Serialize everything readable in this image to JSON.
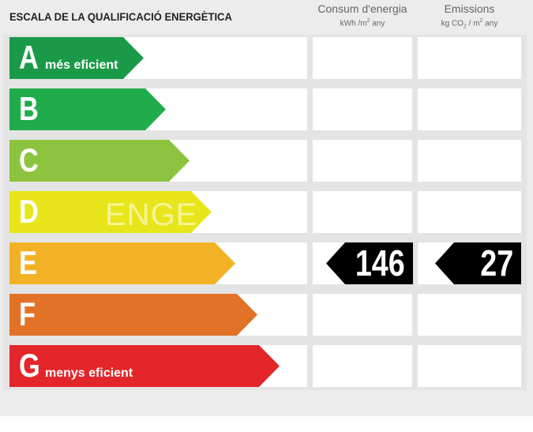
{
  "title": "ESCALA DE LA QUALIFICACIÓ ENERGÈTICA",
  "columns": {
    "consumption": {
      "label": "Consum d'energia",
      "unit_prefix": "kWh /m",
      "unit_sup": "2",
      "unit_suffix": " any"
    },
    "emissions": {
      "label": "Emissions",
      "unit_prefix": "kg CO",
      "unit_sub": "2",
      "unit_mid": " / m",
      "unit_sup": "2",
      "unit_suffix": " any"
    }
  },
  "ratings": [
    {
      "letter": "A",
      "label": "més eficient",
      "color": "#1a9a48"
    },
    {
      "letter": "B",
      "label": "",
      "color": "#21ac4b"
    },
    {
      "letter": "C",
      "label": "",
      "color": "#8cc43f"
    },
    {
      "letter": "D",
      "label": "",
      "color": "#e8e61a"
    },
    {
      "letter": "E",
      "label": "",
      "color": "#f3b226"
    },
    {
      "letter": "F",
      "label": "",
      "color": "#e27228"
    },
    {
      "letter": "G",
      "label": "menys eficient",
      "color": "#e3262a"
    }
  ],
  "current_rating": "E",
  "consumption_value": "146",
  "emissions_value": "27",
  "watermark": "ENGE"
}
